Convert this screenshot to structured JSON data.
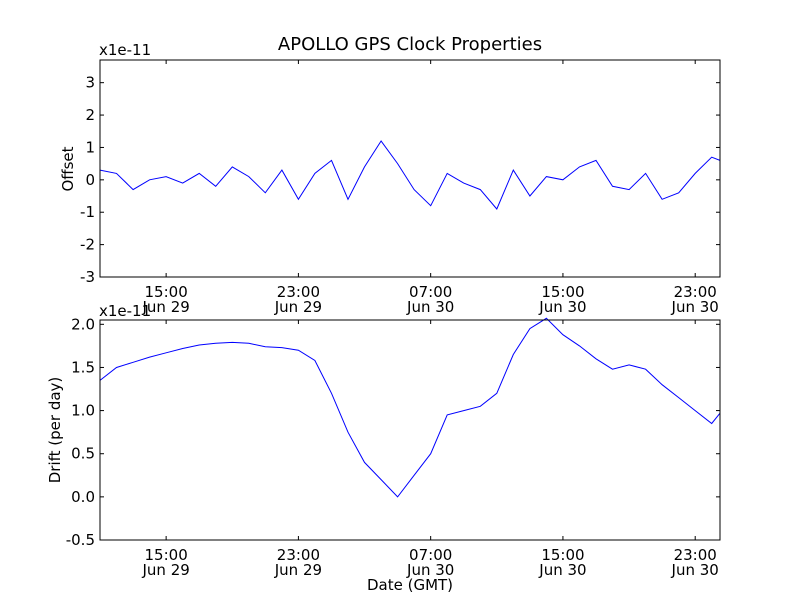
{
  "chart_data": [
    {
      "type": "line",
      "title": "APOLLO GPS Clock Properties",
      "ylabel": "Offset",
      "xlabel": "",
      "scale_label": "x1e-11",
      "series_color": "#0000ff",
      "ylim": [
        -3,
        3.7
      ],
      "yticks": [
        "-3",
        "-2",
        "-1",
        "0",
        "1",
        "2",
        "3"
      ],
      "xlim": [
        "2014-06-29T11:00",
        "2014-07-01T00:30"
      ],
      "xticks": [
        {
          "time": "2014-06-29T15:00",
          "time_label": "15:00",
          "date_label": "Jun 29"
        },
        {
          "time": "2014-06-29T23:00",
          "time_label": "23:00",
          "date_label": "Jun 29"
        },
        {
          "time": "2014-06-30T07:00",
          "time_label": "07:00",
          "date_label": "Jun 30"
        },
        {
          "time": "2014-06-30T15:00",
          "time_label": "15:00",
          "date_label": "Jun 30"
        },
        {
          "time": "2014-06-30T23:00",
          "time_label": "23:00",
          "date_label": "Jun 30"
        }
      ],
      "series": [
        {
          "x": [
            "2014-06-29T11:00",
            "2014-06-29T12:00",
            "2014-06-29T13:00",
            "2014-06-29T14:00",
            "2014-06-29T15:00",
            "2014-06-29T16:00",
            "2014-06-29T17:00",
            "2014-06-29T18:00",
            "2014-06-29T19:00",
            "2014-06-29T20:00",
            "2014-06-29T21:00",
            "2014-06-29T22:00",
            "2014-06-29T23:00",
            "2014-06-30T00:00",
            "2014-06-30T01:00",
            "2014-06-30T02:00",
            "2014-06-30T03:00",
            "2014-06-30T04:00",
            "2014-06-30T05:00",
            "2014-06-30T06:00",
            "2014-06-30T07:00",
            "2014-06-30T08:00",
            "2014-06-30T09:00",
            "2014-06-30T10:00",
            "2014-06-30T11:00",
            "2014-06-30T12:00",
            "2014-06-30T13:00",
            "2014-06-30T14:00",
            "2014-06-30T15:00",
            "2014-06-30T16:00",
            "2014-06-30T17:00",
            "2014-06-30T18:00",
            "2014-06-30T19:00",
            "2014-06-30T20:00",
            "2014-06-30T21:00",
            "2014-06-30T22:00",
            "2014-06-30T23:00",
            "2014-07-01T00:00",
            "2014-07-01T00:30"
          ],
          "y": [
            0.3,
            0.2,
            -0.3,
            0.0,
            0.1,
            -0.1,
            0.2,
            -0.2,
            0.4,
            0.1,
            -0.4,
            0.3,
            -0.6,
            0.2,
            0.6,
            -0.6,
            0.4,
            1.2,
            0.5,
            -0.3,
            -0.8,
            0.2,
            -0.1,
            -0.3,
            -0.9,
            0.3,
            -0.5,
            0.1,
            0.0,
            0.4,
            0.6,
            -0.2,
            -0.3,
            0.2,
            -0.6,
            -0.4,
            0.2,
            0.7,
            0.6
          ]
        }
      ]
    },
    {
      "type": "line",
      "title": "",
      "ylabel": "Drift (per day)",
      "xlabel": "Date (GMT)",
      "scale_label": "x1e-11",
      "series_color": "#0000ff",
      "ylim": [
        -0.5,
        2.05
      ],
      "yticks": [
        "-0.5",
        "0.0",
        "0.5",
        "1.0",
        "1.5",
        "2.0"
      ],
      "xlim": [
        "2014-06-29T11:00",
        "2014-07-01T00:30"
      ],
      "xticks": [
        {
          "time": "2014-06-29T15:00",
          "time_label": "15:00",
          "date_label": "Jun 29"
        },
        {
          "time": "2014-06-29T23:00",
          "time_label": "23:00",
          "date_label": "Jun 29"
        },
        {
          "time": "2014-06-30T07:00",
          "time_label": "07:00",
          "date_label": "Jun 30"
        },
        {
          "time": "2014-06-30T15:00",
          "time_label": "15:00",
          "date_label": "Jun 30"
        },
        {
          "time": "2014-06-30T23:00",
          "time_label": "23:00",
          "date_label": "Jun 30"
        }
      ],
      "series": [
        {
          "x": [
            "2014-06-29T11:00",
            "2014-06-29T12:00",
            "2014-06-29T13:00",
            "2014-06-29T14:00",
            "2014-06-29T15:00",
            "2014-06-29T16:00",
            "2014-06-29T17:00",
            "2014-06-29T18:00",
            "2014-06-29T19:00",
            "2014-06-29T20:00",
            "2014-06-29T21:00",
            "2014-06-29T22:00",
            "2014-06-29T23:00",
            "2014-06-30T00:00",
            "2014-06-30T01:00",
            "2014-06-30T02:00",
            "2014-06-30T03:00",
            "2014-06-30T04:00",
            "2014-06-30T05:00",
            "2014-06-30T06:00",
            "2014-06-30T07:00",
            "2014-06-30T08:00",
            "2014-06-30T09:00",
            "2014-06-30T10:00",
            "2014-06-30T11:00",
            "2014-06-30T12:00",
            "2014-06-30T13:00",
            "2014-06-30T14:00",
            "2014-06-30T15:00",
            "2014-06-30T16:00",
            "2014-06-30T17:00",
            "2014-06-30T18:00",
            "2014-06-30T19:00",
            "2014-06-30T20:00",
            "2014-06-30T21:00",
            "2014-06-30T22:00",
            "2014-06-30T23:00",
            "2014-07-01T00:00",
            "2014-07-01T00:30"
          ],
          "y": [
            1.35,
            1.5,
            1.56,
            1.62,
            1.67,
            1.72,
            1.76,
            1.78,
            1.79,
            1.78,
            1.74,
            1.73,
            1.7,
            1.58,
            1.2,
            0.75,
            0.4,
            0.2,
            0.0,
            0.25,
            0.5,
            0.95,
            1.0,
            1.05,
            1.2,
            1.65,
            1.95,
            2.07,
            1.88,
            1.75,
            1.6,
            1.48,
            1.53,
            1.48,
            1.3,
            1.15,
            1.0,
            0.85,
            0.97
          ]
        }
      ]
    }
  ]
}
